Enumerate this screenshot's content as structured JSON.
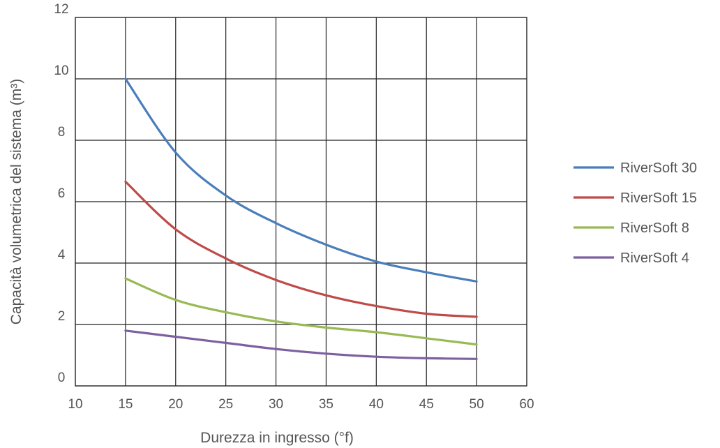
{
  "chart_data": {
    "type": "line",
    "xlabel": "Durezza in ingresso (°f)",
    "ylabel": "Capacità volumetrica del sistema (m³)",
    "xlim": [
      10,
      60
    ],
    "ylim": [
      0,
      12
    ],
    "xticks": [
      "10",
      "15",
      "20",
      "25",
      "30",
      "35",
      "40",
      "45",
      "50",
      "60"
    ],
    "xtick_values": [
      10,
      15,
      20,
      25,
      30,
      35,
      40,
      45,
      50,
      60
    ],
    "yticks": [
      "0",
      "2",
      "4",
      "6",
      "8",
      "10",
      "12"
    ],
    "ytick_values": [
      0,
      2,
      4,
      6,
      8,
      10,
      12
    ],
    "grid": true,
    "legend_position": "right",
    "series": [
      {
        "name": "RiverSoft 30",
        "color": "#4a7ebb",
        "points": [
          [
            15,
            10.0
          ],
          [
            20,
            7.6
          ],
          [
            25,
            6.2
          ],
          [
            30,
            5.3
          ],
          [
            35,
            4.6
          ],
          [
            40,
            4.05
          ],
          [
            45,
            3.7
          ],
          [
            50,
            3.4
          ]
        ]
      },
      {
        "name": "RiverSoft 15",
        "color": "#be4b48",
        "points": [
          [
            15,
            6.65
          ],
          [
            20,
            5.1
          ],
          [
            25,
            4.15
          ],
          [
            30,
            3.45
          ],
          [
            35,
            2.95
          ],
          [
            40,
            2.6
          ],
          [
            45,
            2.35
          ],
          [
            50,
            2.25
          ]
        ]
      },
      {
        "name": "RiverSoft 8",
        "color": "#98b954",
        "points": [
          [
            15,
            3.5
          ],
          [
            20,
            2.8
          ],
          [
            25,
            2.4
          ],
          [
            30,
            2.1
          ],
          [
            35,
            1.9
          ],
          [
            40,
            1.75
          ],
          [
            45,
            1.55
          ],
          [
            50,
            1.35
          ]
        ]
      },
      {
        "name": "RiverSoft 4",
        "color": "#7d60a0",
        "points": [
          [
            15,
            1.8
          ],
          [
            20,
            1.6
          ],
          [
            25,
            1.4
          ],
          [
            30,
            1.2
          ],
          [
            35,
            1.05
          ],
          [
            40,
            0.95
          ],
          [
            45,
            0.9
          ],
          [
            50,
            0.88
          ]
        ]
      }
    ]
  }
}
